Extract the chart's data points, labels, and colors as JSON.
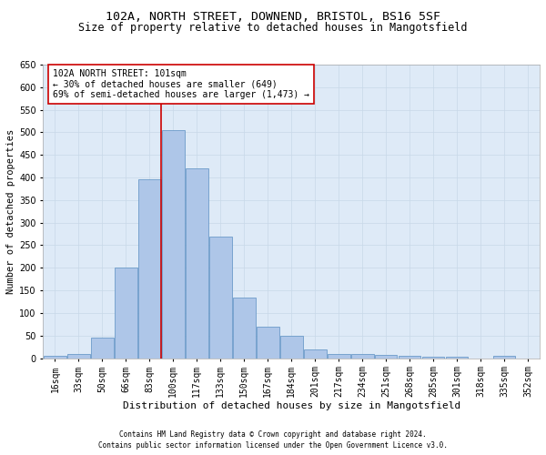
{
  "title1": "102A, NORTH STREET, DOWNEND, BRISTOL, BS16 5SF",
  "title2": "Size of property relative to detached houses in Mangotsfield",
  "xlabel": "Distribution of detached houses by size in Mangotsfield",
  "ylabel": "Number of detached properties",
  "footnote1": "Contains HM Land Registry data © Crown copyright and database right 2024.",
  "footnote2": "Contains public sector information licensed under the Open Government Licence v3.0.",
  "annotation_title": "102A NORTH STREET: 101sqm",
  "annotation_line1": "← 30% of detached houses are smaller (649)",
  "annotation_line2": "69% of semi-detached houses are larger (1,473) →",
  "bar_categories": [
    "16sqm",
    "33sqm",
    "50sqm",
    "66sqm",
    "83sqm",
    "100sqm",
    "117sqm",
    "133sqm",
    "150sqm",
    "167sqm",
    "184sqm",
    "201sqm",
    "217sqm",
    "234sqm",
    "251sqm",
    "268sqm",
    "285sqm",
    "301sqm",
    "318sqm",
    "335sqm",
    "352sqm"
  ],
  "bar_values": [
    5,
    10,
    45,
    200,
    395,
    505,
    420,
    270,
    135,
    70,
    50,
    20,
    10,
    10,
    7,
    5,
    3,
    3,
    0,
    5,
    0
  ],
  "bar_color": "#aec6e8",
  "bar_edge_color": "#5a8fc2",
  "vline_color": "#cc0000",
  "ylim": [
    0,
    650
  ],
  "yticks": [
    0,
    50,
    100,
    150,
    200,
    250,
    300,
    350,
    400,
    450,
    500,
    550,
    600,
    650
  ],
  "grid_color": "#c8d8e8",
  "background_color": "#deeaf7",
  "annotation_box_color": "#ffffff",
  "annotation_box_edge": "#cc0000",
  "title1_fontsize": 9.5,
  "title2_fontsize": 8.5,
  "xlabel_fontsize": 8,
  "ylabel_fontsize": 7.5,
  "tick_fontsize": 7,
  "annotation_fontsize": 7,
  "footnote_fontsize": 5.5
}
